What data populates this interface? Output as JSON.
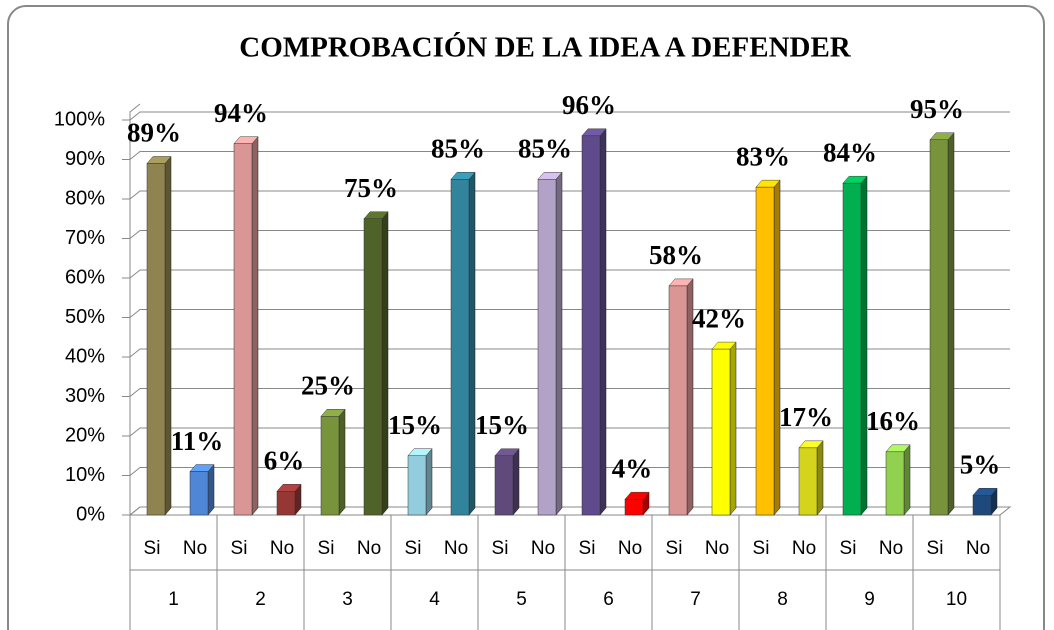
{
  "chart_data": {
    "type": "bar",
    "title": "COMPROBACIÓN  DE LA  IDEA  A  DEFENDER",
    "groups": [
      "1",
      "2",
      "3",
      "4",
      "5",
      "6",
      "7",
      "8",
      "9",
      "10"
    ],
    "categories": [
      "Si",
      "No",
      "Si",
      "No",
      "Si",
      "No",
      "Si",
      "No",
      "Si",
      "No",
      "Si",
      "No",
      "Si",
      "No",
      "Si",
      "No",
      "Si",
      "No",
      "Si",
      "No"
    ],
    "values": [
      89,
      11,
      94,
      6,
      25,
      75,
      15,
      85,
      15,
      85,
      96,
      4,
      58,
      42,
      83,
      17,
      84,
      16,
      95,
      5
    ],
    "value_labels": [
      "89%",
      "11%",
      "94%",
      "6%",
      "25%",
      "75%",
      "15%",
      "85%",
      "15%",
      "85%",
      "96%",
      "4%",
      "58%",
      "42%",
      "83%",
      "17%",
      "84%",
      "16%",
      "95%",
      "5%"
    ],
    "colors": [
      "#8f8450",
      "#4f86d6",
      "#d99694",
      "#953735",
      "#77933c",
      "#4f6228",
      "#93cddd",
      "#31849b",
      "#604a7b",
      "#b3a2c7",
      "#5f4b8b",
      "#ff0000",
      "#d99694",
      "#ffff00",
      "#ffc000",
      "#d4d41c",
      "#00b050",
      "#92d050",
      "#77933c",
      "#1f497d"
    ],
    "ylim": [
      0,
      100
    ],
    "yticks": [
      {
        "value": 0,
        "label": "0%"
      },
      {
        "value": 10,
        "label": "10%"
      },
      {
        "value": 20,
        "label": "20%"
      },
      {
        "value": 30,
        "label": "30%"
      },
      {
        "value": 40,
        "label": "40%"
      },
      {
        "value": 50,
        "label": "50%"
      },
      {
        "value": 60,
        "label": "60%"
      },
      {
        "value": 70,
        "label": "70%"
      },
      {
        "value": 80,
        "label": "80%"
      },
      {
        "value": 90,
        "label": "90%"
      },
      {
        "value": 100,
        "label": "100%"
      }
    ],
    "grid": true
  }
}
